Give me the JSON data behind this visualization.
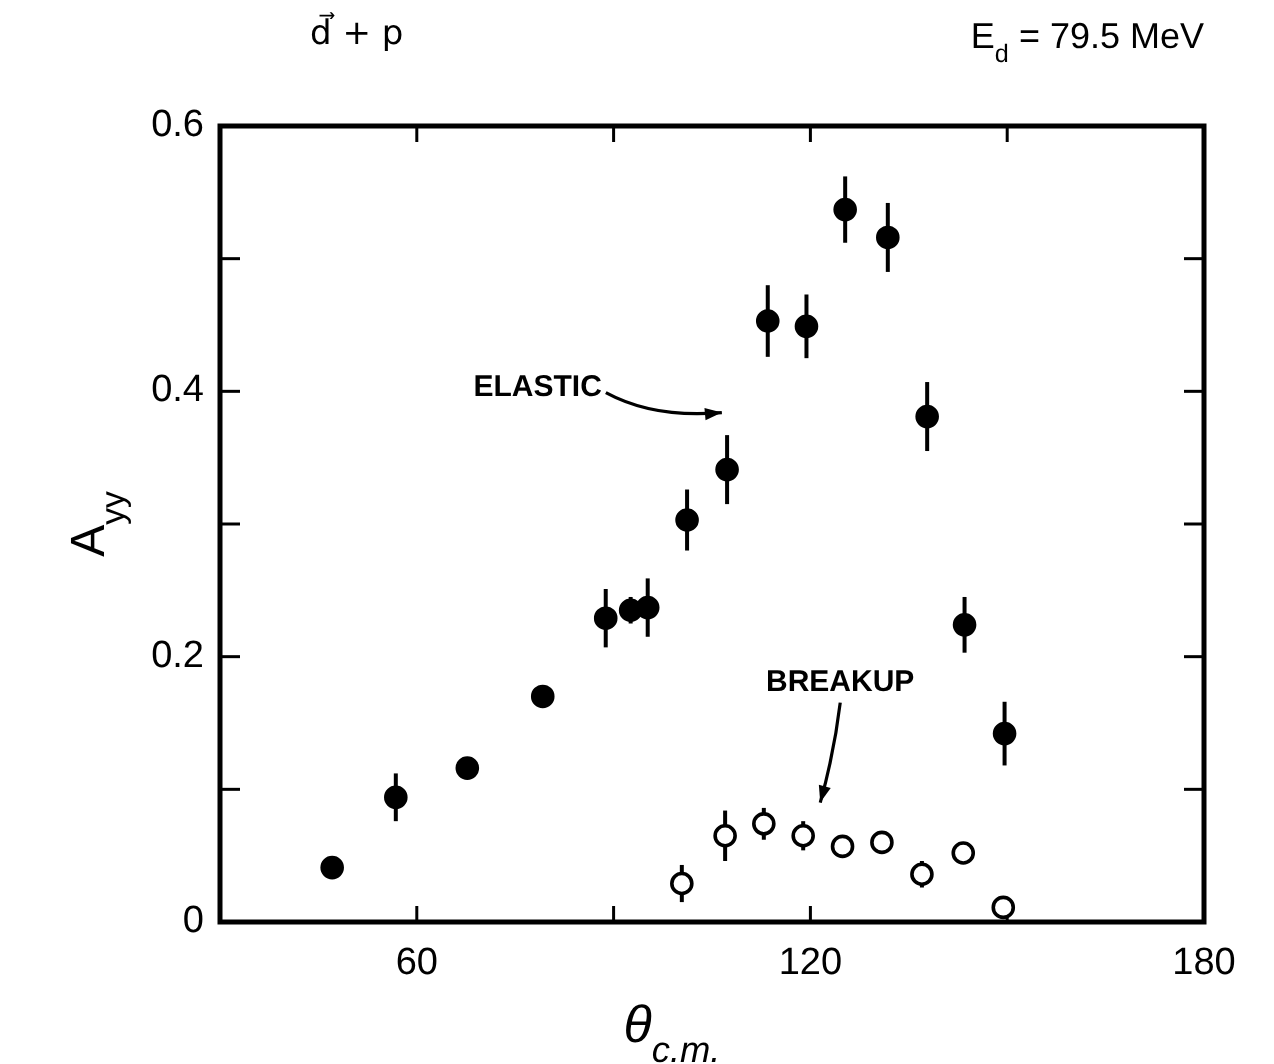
{
  "chart_data": {
    "type": "scatter",
    "title": "d⃗ + p",
    "subtitle": "E$_{d}$ = 79.5 MeV",
    "xlabel": "θ$_{c.m.}$",
    "ylabel": "A$_{yy}$",
    "xlim": [
      30,
      180
    ],
    "xticks": [
      {
        "value": 30,
        "label": null
      },
      60,
      {
        "value": 90,
        "label": null
      },
      120,
      {
        "value": 150,
        "label": null
      },
      180
    ],
    "ylim": [
      0,
      0.6
    ],
    "yticks": [
      0,
      {
        "value": 0.1,
        "label": null
      },
      0.2,
      {
        "value": 0.3,
        "label": null
      },
      0.4,
      {
        "value": 0.5,
        "label": null
      },
      0.6
    ],
    "marker": "circle",
    "grid": false,
    "series": [
      {
        "color": "#000000",
        "x": [
          47.1,
          56.8,
          67.7,
          79.2,
          88.8,
          92.6,
          95.2,
          101.2,
          107.3,
          113.5,
          119.4,
          125.3,
          131.8,
          137.8,
          143.5,
          149.6
        ],
        "values": [
          0.041,
          0.094,
          0.116,
          0.17,
          0.229,
          0.235,
          0.237,
          0.303,
          0.341,
          0.453,
          0.449,
          0.537,
          0.516,
          0.381,
          0.224,
          0.142
        ],
        "errors": [
          0.006,
          0.018,
          0.005,
          null,
          0.022,
          0.01,
          0.022,
          0.023,
          0.026,
          0.027,
          0.024,
          0.025,
          0.026,
          0.026,
          0.021,
          0.024
        ]
      },
      {
        "color": "#ffffff",
        "x": [
          100.4,
          107.0,
          112.9,
          118.9,
          124.9,
          130.9,
          137.0,
          143.3,
          149.4
        ],
        "values": [
          0.029,
          0.065,
          0.074,
          0.065,
          0.057,
          0.06,
          0.036,
          0.052,
          0.011
        ],
        "errors": [
          0.014,
          0.019,
          0.012,
          0.011,
          0.008,
          0.008,
          0.01,
          null,
          0.008
        ]
      }
    ],
    "annotations": [
      "ELASTIC",
      "BREAKUP"
    ]
  }
}
